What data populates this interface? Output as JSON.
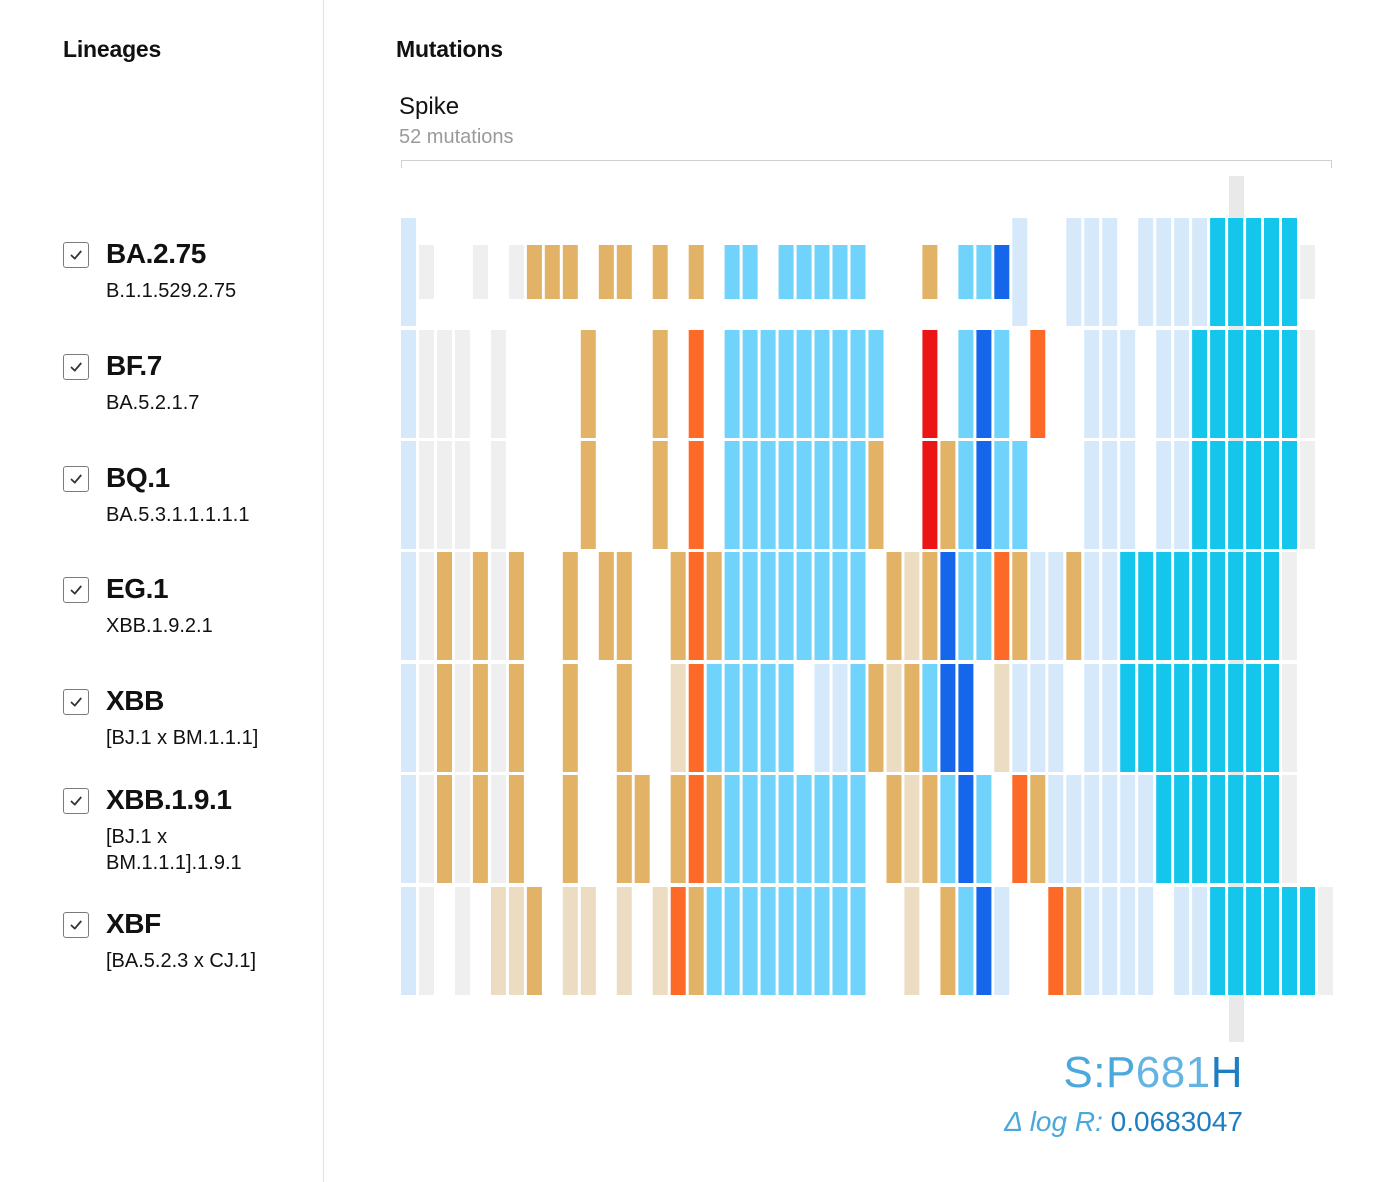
{
  "lineages_panel": {
    "title": "Lineages",
    "items": [
      {
        "name": "BA.2.75",
        "full": "B.1.1.529.2.75",
        "checked": true
      },
      {
        "name": "BF.7",
        "full": "BA.5.2.1.7",
        "checked": true
      },
      {
        "name": "BQ.1",
        "full": "BA.5.3.1.1.1.1.1",
        "checked": true
      },
      {
        "name": "EG.1",
        "full": "XBB.1.9.2.1",
        "checked": true
      },
      {
        "name": "XBB",
        "full": "[BJ.1 x BM.1.1.1]",
        "checked": true
      },
      {
        "name": "XBB.1.9.1",
        "full": "[BJ.1 x BM.1.1.1].1.9.1",
        "checked": true
      },
      {
        "name": "XBF",
        "full": "[BA.5.2.3 x CJ.1]",
        "checked": true
      }
    ]
  },
  "mutations_panel": {
    "title": "Mutations",
    "gene": {
      "name": "Spike",
      "count_label": "52 mutations"
    },
    "hovered": {
      "gene": "S:",
      "ref": "P",
      "pos": "681",
      "alt": "H",
      "delta_label": "Δ log R:",
      "delta_value": "0.0683047"
    }
  },
  "colors": {
    "gray": "#efefef",
    "pale_blue": "#d6e9fb",
    "sky": "#6fd3fb",
    "cyan_hl": "#14c6ec",
    "royal": "#1666ec",
    "tan_pale": "#ecdcc2",
    "tan": "#e2b366",
    "orange": "#fd6a28",
    "red": "#ec1515",
    "hover_band": "#e9e9e9",
    "label_blue": "#4aa8dc"
  },
  "chart_data": {
    "type": "heatmap",
    "rows": [
      "BA.2.75",
      "BF.7",
      "BQ.1",
      "EG.1",
      "XBB",
      "XBB.1.9.1",
      "XBF"
    ],
    "legend_codes": {
      "0": "absent",
      "g": "gray",
      "p": "pale blue",
      "s": "sky blue",
      "h": "cyan (highlighted column)",
      "b": "royal blue",
      "t": "pale tan",
      "T": "tan",
      "o": "orange",
      "r": "red",
      "lowercase half": "small letters in 'half' mark a half-height cell"
    },
    "cells": [
      "pg00g0gTTT0TT0T0T0ss0sSsSs000T0Ssbp00ppp0pppphhhhhg",
      "pggg0g0000T000T0o0sssssssss00r0sbS0o00ppp0pphhhhhhg",
      "pggg0g0000T000T0o0ssssssssT00rTsbSS000ppp0pphhhhhhg",
      "pgTgTgT00T0TT00ToTssssssss0TtTbssoTppTpphhhhhhhhhg",
      "pgTgTgT00T00T00tosssss0ppSTtTsbb0tppp0pphhhhhhhhhg",
      "pgTgTgT00T00TT0ToTssssssss0TtTsbS0oTpppppphhhhhhhg",
      "pg0g0ttT0tt0t0toTsssssssss00t0Tsbp00oTpppp0pphhhhhhg"
    ]
  }
}
